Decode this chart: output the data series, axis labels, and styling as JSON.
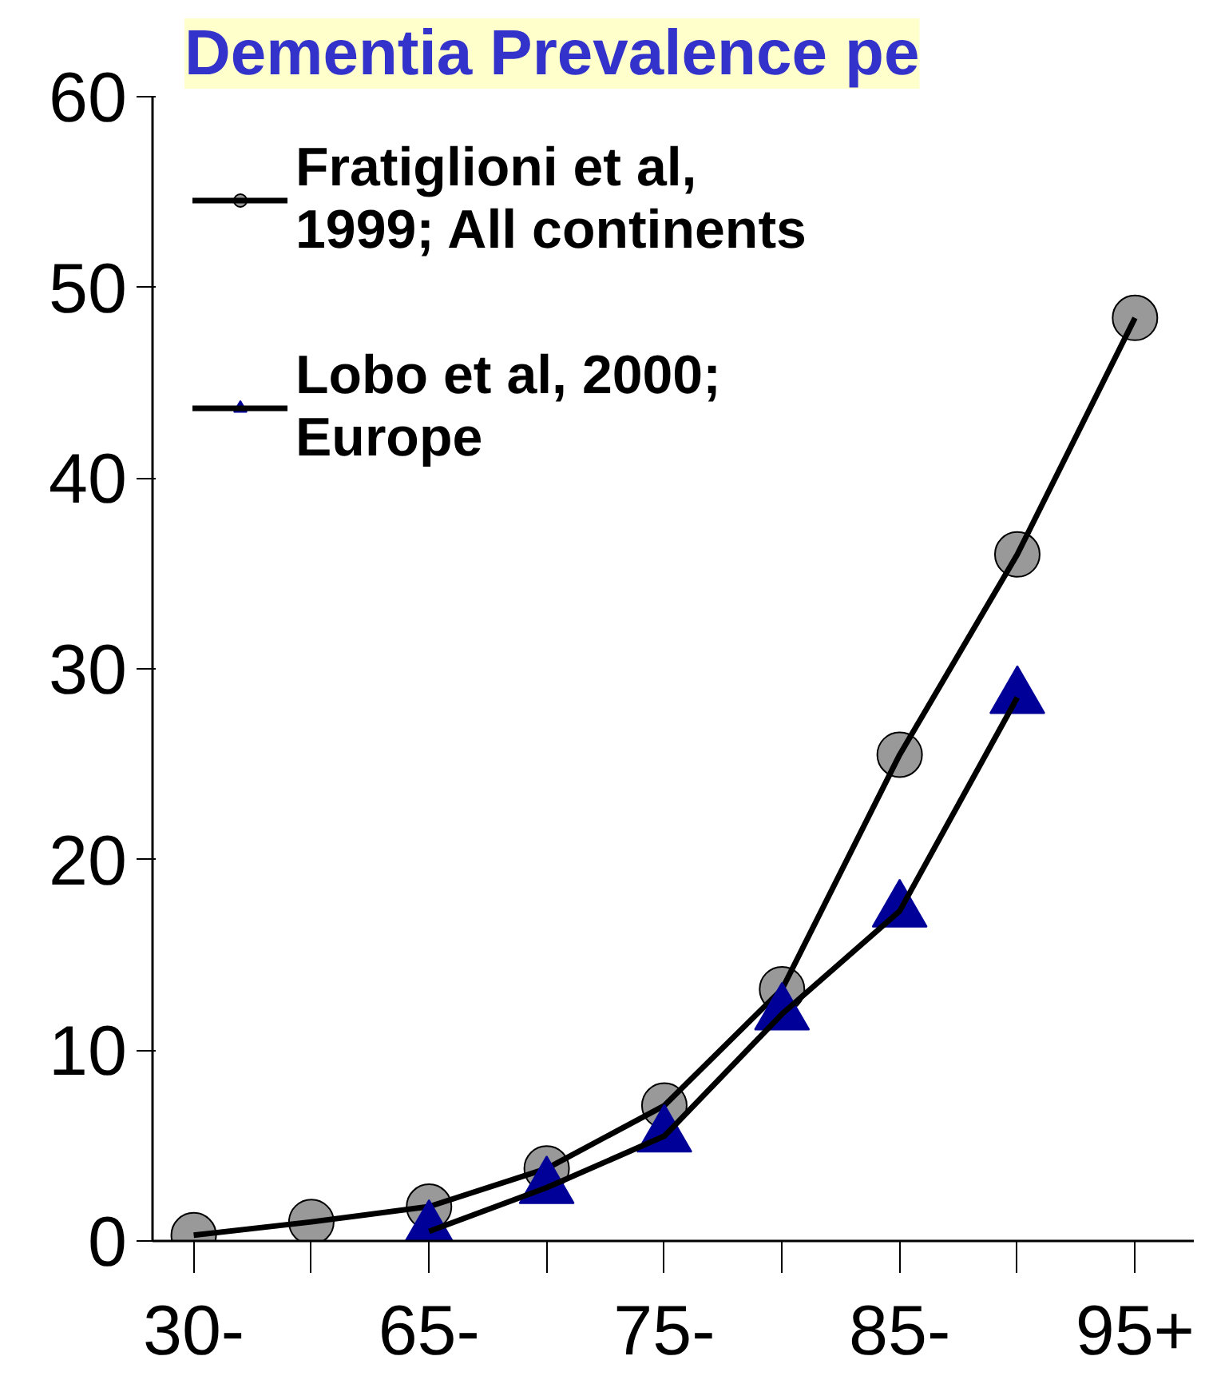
{
  "chart_data": {
    "type": "line",
    "title": "Dementia Prevalence pe",
    "categories": [
      "30-",
      null,
      "65-",
      null,
      "75-",
      null,
      "85-",
      null,
      "95+"
    ],
    "series": [
      {
        "name": "Fratiglioni et al,\n1999; All continents",
        "color": "#999999",
        "marker": "circle",
        "values": [
          0.3,
          1.0,
          1.8,
          3.8,
          7.1,
          13.2,
          25.5,
          36.0,
          48.4
        ]
      },
      {
        "name": "Lobo et al, 2000;\nEurope",
        "color": "#000099",
        "marker": "triangle",
        "values": [
          null,
          null,
          0.5,
          2.8,
          5.5,
          11.9,
          17.3,
          28.5,
          null
        ]
      }
    ],
    "ylim": [
      0,
      60
    ],
    "yticks": [
      0,
      10,
      20,
      30,
      40,
      50,
      60
    ],
    "grid": false,
    "legend": "top left"
  }
}
